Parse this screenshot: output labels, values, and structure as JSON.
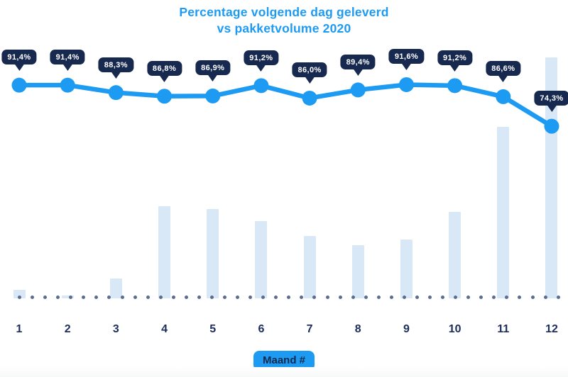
{
  "title": {
    "line1": "Percentage volgende dag geleverd",
    "line2": "vs pakketvolume 2020"
  },
  "x_axis_label": "Maand #",
  "colors": {
    "accent_blue": "#1d9bf3",
    "navy": "#18294f",
    "bar_fill": "#d9e8f7",
    "baseline_dot": "#5b6e92",
    "tooltip_text": "#ffffff"
  },
  "chart_data": {
    "type": "combo (line + bar)",
    "title": "Percentage volgende dag geleverd vs pakketvolume 2020",
    "xlabel": "Maand #",
    "categories": [
      "1",
      "2",
      "3",
      "4",
      "5",
      "6",
      "7",
      "8",
      "9",
      "10",
      "11",
      "12"
    ],
    "series": [
      {
        "name": "Percentage volgende dag geleverd",
        "type": "line",
        "unit": "%",
        "values": [
          91.4,
          91.4,
          88.3,
          86.8,
          86.9,
          91.2,
          86.0,
          89.4,
          91.6,
          91.2,
          86.6,
          74.3
        ],
        "labels": [
          "91,4%",
          "91,4%",
          "88,3%",
          "86,8%",
          "86,9%",
          "91,2%",
          "86,0%",
          "89,4%",
          "91,6%",
          "91,2%",
          "86,6%",
          "74,3%"
        ]
      },
      {
        "name": "Pakketvolume",
        "type": "bar",
        "unit": "relative, max month = 100",
        "values": [
          3.5,
          1.2,
          8.2,
          38.2,
          37.1,
          32.1,
          25.9,
          22.1,
          24.4,
          35.9,
          71.2,
          100
        ]
      }
    ],
    "legend": "none",
    "grid": "off",
    "y_axis": "hidden (bars unlabeled, line labeled via tooltips)"
  }
}
